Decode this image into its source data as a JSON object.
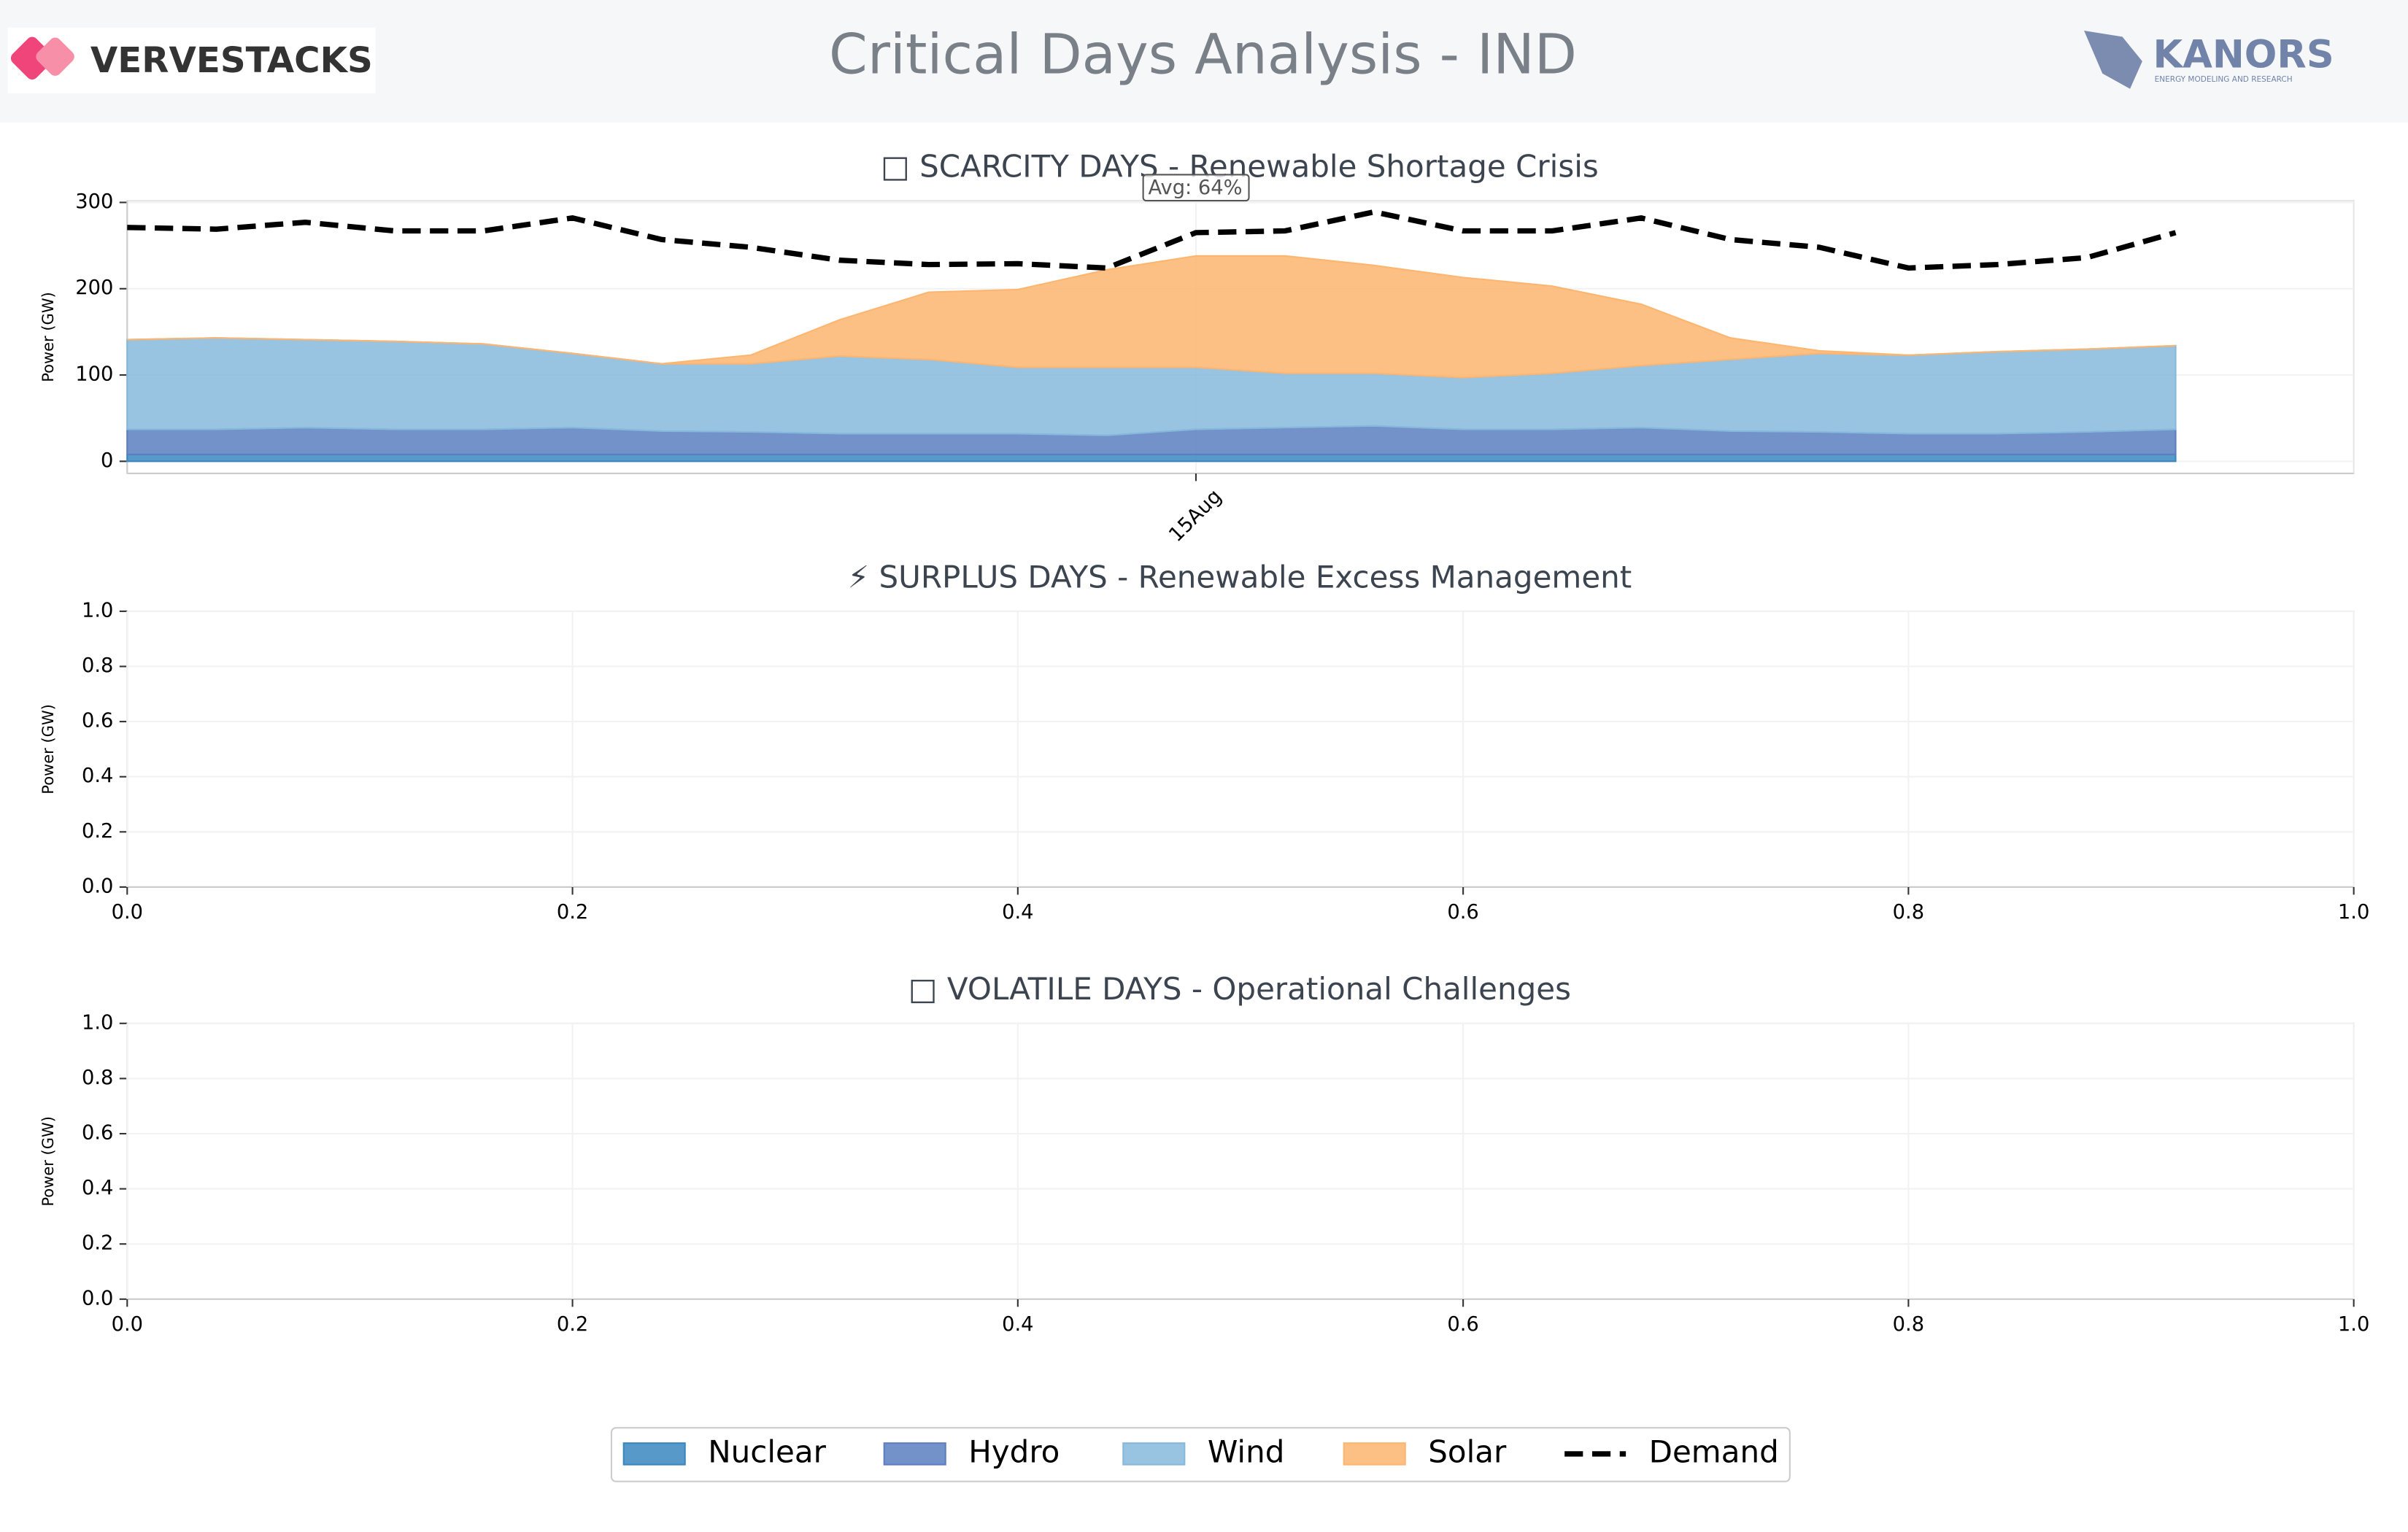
{
  "header": {
    "title": "Critical Days Analysis - IND",
    "left_logo": "VERVESTACKS",
    "right_logo": "KANORS",
    "right_logo_sub": "ENERGY MODELING AND RESEARCH"
  },
  "chart_data": [
    {
      "type": "area",
      "title": "□ SCARCITY DAYS - Renewable Shortage Crisis",
      "y_label": "Power (GW)",
      "annotation": "Avg: 64%",
      "categories": [
        null,
        null,
        null,
        null,
        null,
        null,
        null,
        null,
        null,
        null,
        null,
        null,
        "15Aug",
        null,
        null,
        null,
        null,
        null,
        null,
        null,
        null,
        null,
        null,
        null
      ],
      "ylim": [
        -14,
        302
      ],
      "yticks": [
        0,
        100,
        200,
        300
      ],
      "grid": true,
      "legend": "bottom",
      "series": [
        {
          "name": "Nuclear",
          "color": "#3a87c0",
          "values": [
            8,
            8,
            8,
            8,
            8,
            8,
            8,
            8,
            8,
            8,
            8,
            8,
            8,
            8,
            8,
            8,
            8,
            8,
            8,
            8,
            8,
            8,
            8,
            8
          ]
        },
        {
          "name": "Hydro",
          "color": "#5b7fc0",
          "values": [
            29,
            29,
            31,
            29,
            29,
            31,
            27,
            26,
            24,
            24,
            24,
            22,
            29,
            31,
            33,
            29,
            29,
            31,
            27,
            26,
            24,
            24,
            26,
            29
          ]
        },
        {
          "name": "Wind",
          "color": "#86b8dc",
          "values": [
            104,
            106,
            102,
            102,
            99,
            86,
            78,
            79,
            90,
            86,
            77,
            79,
            72,
            63,
            61,
            60,
            65,
            72,
            83,
            91,
            91,
            95,
            96,
            97
          ]
        },
        {
          "name": "Solar",
          "color": "#fdb56f",
          "values": [
            0,
            0,
            0,
            0,
            0,
            0,
            0,
            10,
            42,
            78,
            90,
            113,
            129,
            136,
            125,
            116,
            101,
            71,
            25,
            3,
            0,
            0,
            0,
            0
          ]
        },
        {
          "name": "Demand",
          "color": "#000000",
          "dash": true,
          "values": [
            271,
            269,
            277,
            267,
            267,
            282,
            257,
            248,
            233,
            228,
            229,
            224,
            265,
            267,
            289,
            267,
            267,
            282,
            257,
            248,
            224,
            228,
            236,
            265
          ]
        }
      ]
    },
    {
      "type": "empty",
      "title": "⚡ SURPLUS DAYS - Renewable Excess Management",
      "y_label": "Power (GW)",
      "xlim": [
        0,
        1
      ],
      "ylim": [
        0,
        1
      ],
      "grid": true,
      "xticks": [
        {
          "value": 0,
          "label": "0.0"
        },
        {
          "value": 0.2,
          "label": "0.2"
        },
        {
          "value": 0.4,
          "label": "0.4"
        },
        {
          "value": 0.6,
          "label": "0.6"
        },
        {
          "value": 0.8,
          "label": "0.8"
        },
        {
          "value": 1,
          "label": "1.0"
        }
      ],
      "yticks": [
        {
          "value": 0,
          "label": "0.0"
        },
        {
          "value": 0.2,
          "label": "0.2"
        },
        {
          "value": 0.4,
          "label": "0.4"
        },
        {
          "value": 0.6,
          "label": "0.6"
        },
        {
          "value": 0.8,
          "label": "0.8"
        },
        {
          "value": 1,
          "label": "1.0"
        }
      ]
    },
    {
      "type": "empty",
      "title": "□ VOLATILE DAYS - Operational Challenges",
      "y_label": "Power (GW)",
      "xlim": [
        0,
        1
      ],
      "ylim": [
        0,
        1
      ],
      "grid": true,
      "xticks": [
        {
          "value": 0,
          "label": "0.0"
        },
        {
          "value": 0.2,
          "label": "0.2"
        },
        {
          "value": 0.4,
          "label": "0.4"
        },
        {
          "value": 0.6,
          "label": "0.6"
        },
        {
          "value": 0.8,
          "label": "0.8"
        },
        {
          "value": 1,
          "label": "1.0"
        }
      ],
      "yticks": [
        {
          "value": 0,
          "label": "0.0"
        },
        {
          "value": 0.2,
          "label": "0.2"
        },
        {
          "value": 0.4,
          "label": "0.4"
        },
        {
          "value": 0.6,
          "label": "0.6"
        },
        {
          "value": 0.8,
          "label": "0.8"
        },
        {
          "value": 1,
          "label": "1.0"
        }
      ]
    }
  ]
}
